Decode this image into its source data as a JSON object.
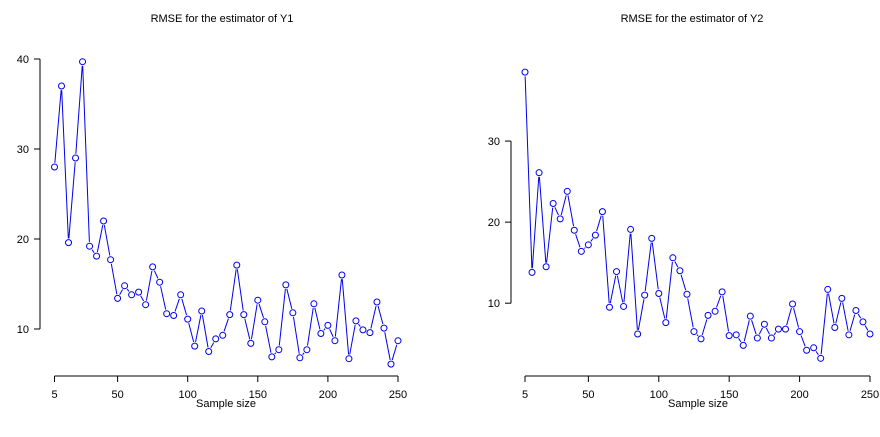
{
  "chart_data": [
    {
      "type": "line",
      "title": "RMSE for the estimator of Y1",
      "xlabel": "Sample size",
      "ylabel": "",
      "xlim": [
        5,
        250
      ],
      "ylim": [
        6,
        40
      ],
      "xticks": [
        5,
        50,
        100,
        150,
        200,
        250
      ],
      "yticks": [
        10,
        20,
        30,
        40
      ],
      "marker": "open-circle",
      "grid": false,
      "color": "#0000ee",
      "series": [
        {
          "x": [
            5,
            10,
            15,
            20,
            25,
            30,
            35,
            40,
            45,
            50,
            55,
            60,
            65,
            70,
            75,
            80,
            85,
            90,
            95,
            100,
            105,
            110,
            115,
            120,
            125,
            130,
            135,
            140,
            145,
            150,
            155,
            160,
            165,
            170,
            175,
            180,
            185,
            190,
            195,
            200,
            205,
            210,
            215,
            220,
            225,
            230,
            235,
            240,
            245,
            250
          ],
          "values": [
            28.0,
            37.0,
            19.6,
            29.0,
            39.7,
            19.2,
            18.1,
            22.0,
            17.7,
            13.4,
            14.8,
            13.8,
            14.1,
            12.7,
            16.9,
            15.2,
            11.7,
            11.5,
            13.8,
            11.1,
            8.1,
            12.0,
            7.5,
            8.9,
            9.3,
            11.6,
            17.1,
            11.6,
            8.4,
            13.2,
            10.8,
            6.9,
            7.7,
            14.9,
            11.8,
            6.8,
            7.7,
            12.8,
            9.5,
            10.4,
            8.7,
            16.0,
            6.7,
            10.9,
            9.9,
            9.6,
            13.0,
            10.1,
            6.1,
            8.7
          ]
        }
      ]
    },
    {
      "type": "line",
      "title": "RMSE for the estimator of Y2",
      "xlabel": "Sample size",
      "ylabel": "",
      "xlim": [
        5,
        250
      ],
      "ylim": [
        2.5,
        40
      ],
      "xticks": [
        5,
        50,
        100,
        150,
        200,
        250
      ],
      "yticks": [
        10,
        20,
        30
      ],
      "marker": "open-circle",
      "grid": false,
      "color": "#0000ee",
      "series": [
        {
          "x": [
            5,
            10,
            15,
            20,
            25,
            30,
            35,
            40,
            45,
            50,
            55,
            60,
            65,
            70,
            75,
            80,
            85,
            90,
            95,
            100,
            105,
            110,
            115,
            120,
            125,
            130,
            135,
            140,
            145,
            150,
            155,
            160,
            165,
            170,
            175,
            180,
            185,
            190,
            195,
            200,
            205,
            210,
            215,
            220,
            225,
            230,
            235,
            240,
            245,
            250
          ],
          "values": [
            38.5,
            13.8,
            26.1,
            14.5,
            22.3,
            20.4,
            23.8,
            19.0,
            16.4,
            17.2,
            18.4,
            21.3,
            9.5,
            13.9,
            9.6,
            19.1,
            6.2,
            11.0,
            18.0,
            11.2,
            7.6,
            15.6,
            14.0,
            11.1,
            6.5,
            5.6,
            8.5,
            9.0,
            11.4,
            6.0,
            6.1,
            4.8,
            8.4,
            5.7,
            7.4,
            5.7,
            6.8,
            6.8,
            9.9,
            6.5,
            4.2,
            4.5,
            3.2,
            11.7,
            7.0,
            10.6,
            6.1,
            9.1,
            7.7,
            6.2
          ]
        }
      ]
    }
  ]
}
